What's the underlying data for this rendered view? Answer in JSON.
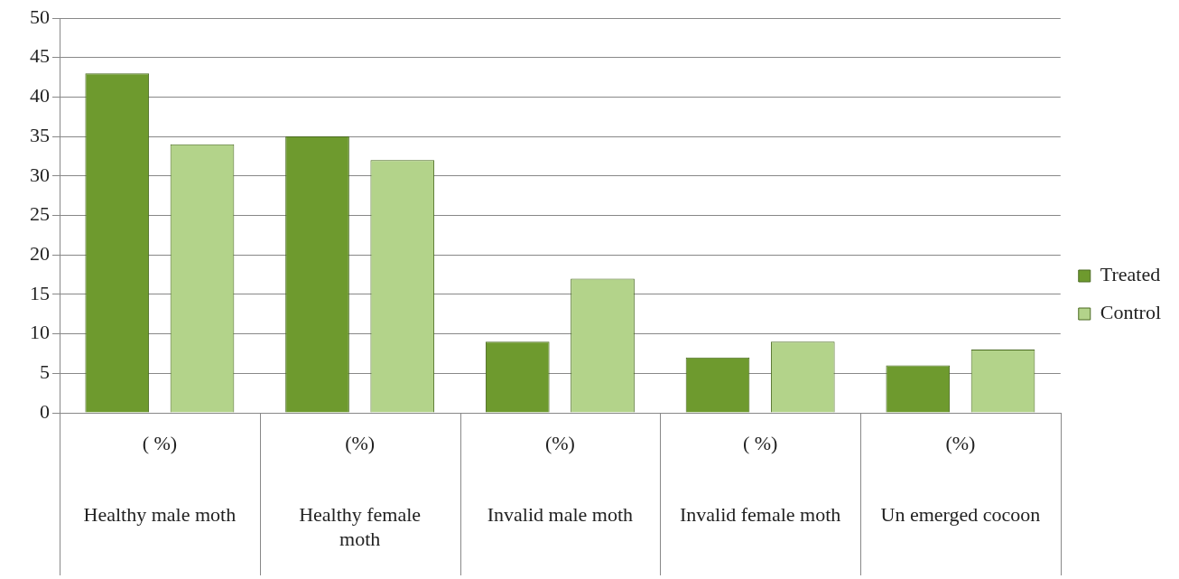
{
  "chart_data": {
    "type": "bar",
    "categories": [
      "( %)\nHealthy male moth",
      "(%)\nHealthy female moth",
      "(%)\nInvalid male moth",
      "( %)\nInvalid female moth",
      "(%)\nUn emerged cocoon"
    ],
    "series": [
      {
        "name": "Treated",
        "color": "#6e9a2e",
        "values": [
          43,
          35,
          9,
          7,
          6
        ]
      },
      {
        "name": "Control",
        "color": "#b3d38a",
        "values": [
          34,
          32,
          17,
          9,
          8
        ]
      }
    ],
    "ylim": [
      0,
      50
    ],
    "yticks": [
      0,
      5,
      10,
      15,
      20,
      25,
      30,
      35,
      40,
      45,
      50
    ],
    "grid": "y",
    "legend": "right"
  }
}
